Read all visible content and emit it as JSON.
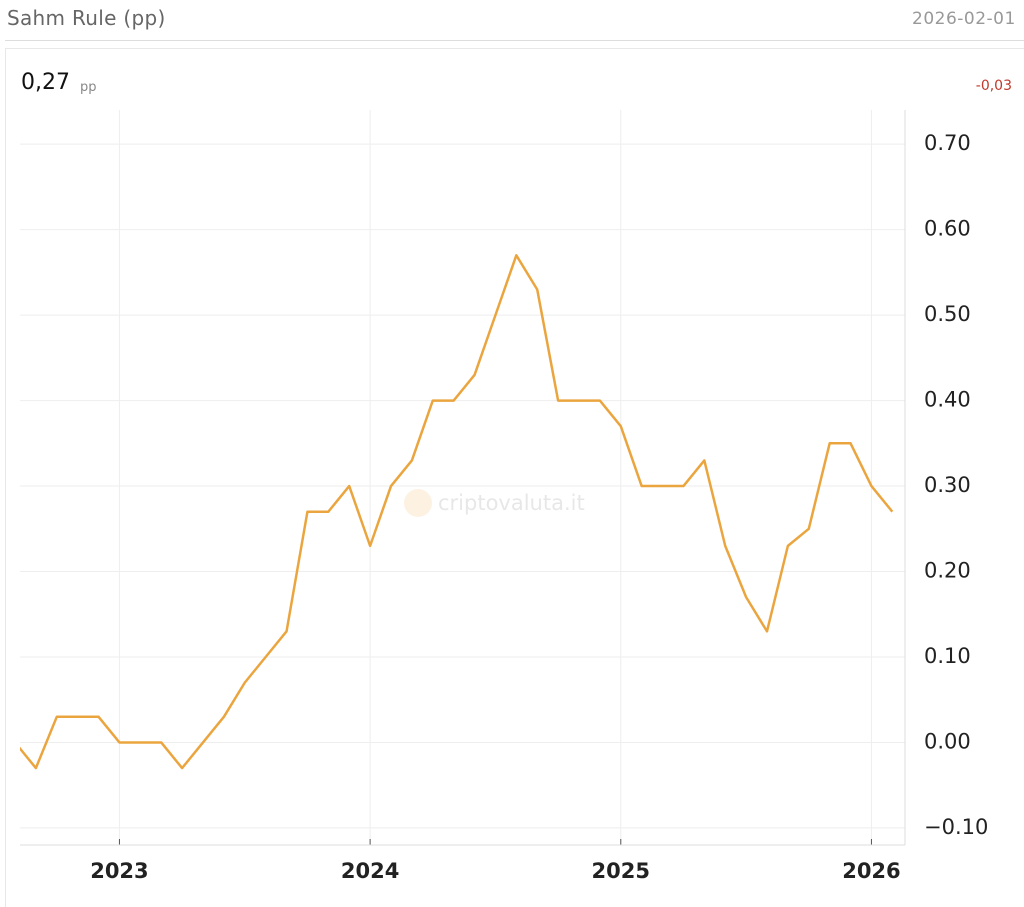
{
  "header": {
    "title": "Sahm Rule (pp)",
    "date": "2026-02-01",
    "current": "0,27",
    "unit": "pp",
    "change": "-0,03"
  },
  "chart_data": {
    "type": "line",
    "watermark": "criptovaluta.it",
    "categories": [
      null,
      null,
      null,
      null,
      null,
      "2023",
      null,
      null,
      null,
      null,
      null,
      null,
      null,
      null,
      null,
      null,
      null,
      "2024",
      null,
      null,
      null,
      null,
      null,
      null,
      null,
      null,
      null,
      null,
      null,
      "2025",
      null,
      null,
      null,
      null,
      null,
      null,
      null,
      null,
      null,
      null,
      null,
      "2026",
      null
    ],
    "series": [
      {
        "name": "Sahm Rule",
        "color": "#eba53f",
        "values": [
          0.0,
          -0.03,
          0.03,
          0.03,
          0.03,
          0.0,
          0.0,
          0.0,
          -0.03,
          0.0,
          0.03,
          0.07,
          0.1,
          0.13,
          0.27,
          0.27,
          0.3,
          0.23,
          0.3,
          0.33,
          0.4,
          0.4,
          0.43,
          0.5,
          0.57,
          0.53,
          0.4,
          0.4,
          0.4,
          0.37,
          0.3,
          0.3,
          0.3,
          0.33,
          0.23,
          0.17,
          0.13,
          0.23,
          0.25,
          0.35,
          0.35,
          0.3,
          0.27
        ]
      }
    ],
    "ylim": [
      -0.12,
      0.74
    ],
    "yticks": [
      {
        "value": -0.1,
        "label": "−0.10"
      },
      {
        "value": 0,
        "label": "0.00"
      },
      {
        "value": 0.1,
        "label": "0.10"
      },
      {
        "value": 0.2,
        "label": "0.20"
      },
      {
        "value": 0.3,
        "label": "0.30"
      },
      {
        "value": 0.4,
        "label": "0.40"
      },
      {
        "value": 0.5,
        "label": "0.50"
      },
      {
        "value": 0.6,
        "label": "0.60"
      },
      {
        "value": 0.7,
        "label": "0.70"
      }
    ],
    "grid": true
  }
}
